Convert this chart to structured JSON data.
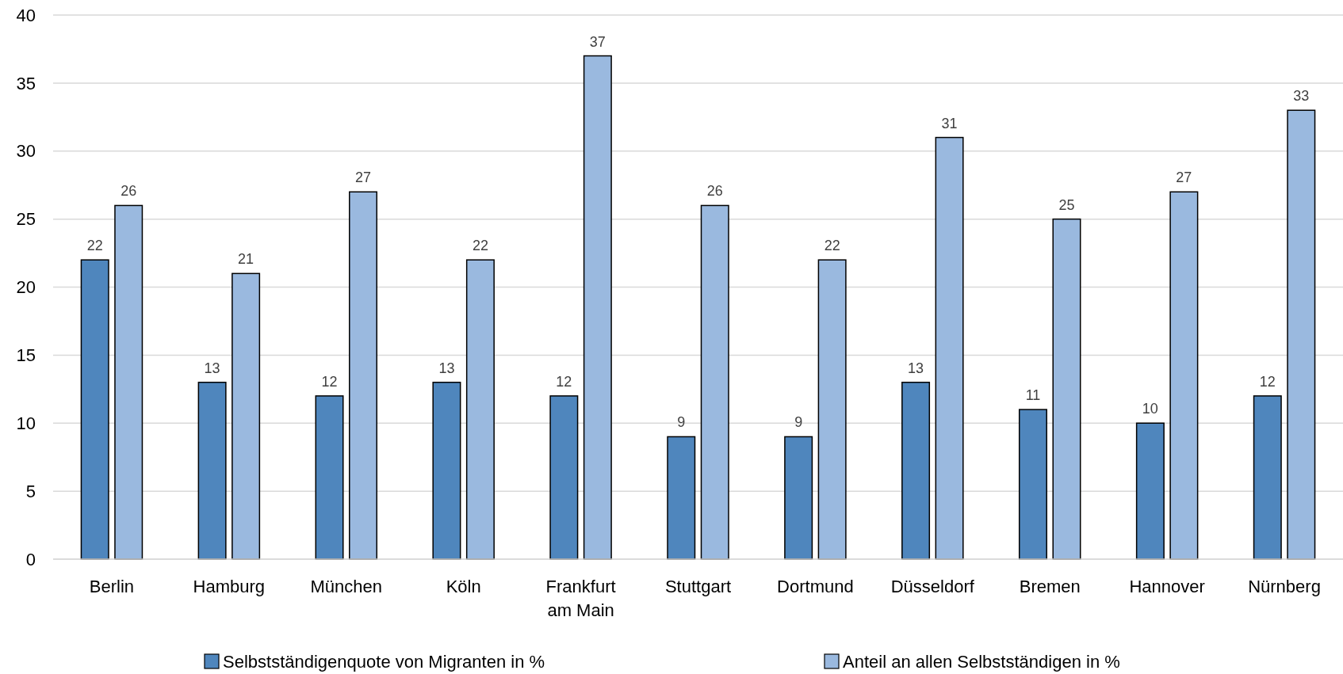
{
  "chart_data": {
    "type": "bar",
    "categories": [
      "Berlin",
      "Hamburg",
      "München",
      "Köln",
      "Frankfurt am Main",
      "Stuttgart",
      "Dortmund",
      "Düsseldorf",
      "Bremen",
      "Hannover",
      "Nürnberg"
    ],
    "series": [
      {
        "name": "Selbstständigenquote von Migranten in %",
        "color": "#4f86bd",
        "values": [
          22,
          13,
          12,
          13,
          12,
          9,
          9,
          13,
          11,
          10,
          12
        ]
      },
      {
        "name": "Anteil an allen Selbstständigen in %",
        "color": "#9ab9df",
        "values": [
          26,
          21,
          27,
          22,
          37,
          26,
          22,
          31,
          25,
          27,
          33
        ]
      }
    ],
    "ylim": [
      0,
      40
    ],
    "yticks": [
      0,
      5,
      10,
      15,
      20,
      25,
      30,
      35,
      40
    ],
    "grid": "y",
    "legend": "bottom",
    "data_labels": true
  }
}
